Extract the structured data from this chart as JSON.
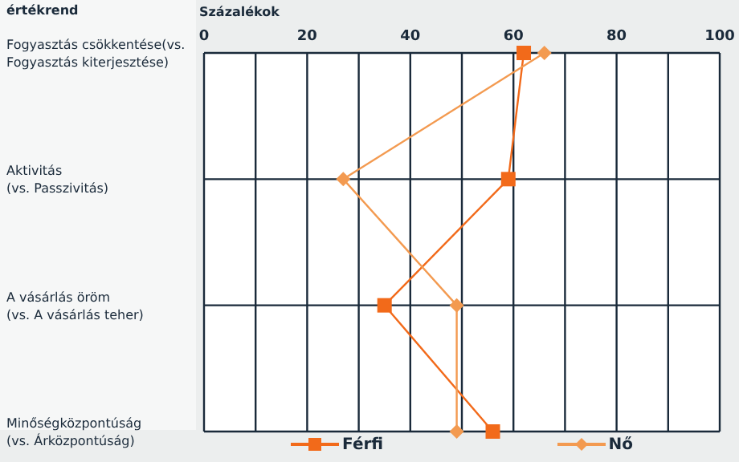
{
  "chart_data": {
    "type": "line",
    "xlabel": "Százalékok",
    "ylabel": "értékrend",
    "categories": [
      "Fogyasztás csökkentése(vs. Fogyasztás kiterjesztése)",
      "Aktivitás (vs. Passzivitás)",
      "A vásárlás öröm (vs. A vásárlás teher)",
      "Minőségközpontúság (vs. Árközpontúság)"
    ],
    "series": [
      {
        "name": "Férfi",
        "color": "#f26a1a",
        "marker": "square",
        "values": [
          62,
          59,
          35,
          56
        ]
      },
      {
        "name": "Nő",
        "color": "#f39a50",
        "marker": "diamond",
        "values": [
          66,
          27,
          49,
          49
        ]
      }
    ],
    "xlim": [
      0,
      100
    ],
    "xticks": [
      0,
      {
        "value": 10,
        "label": null
      },
      20,
      {
        "value": 30,
        "label": null
      },
      40,
      {
        "value": 50,
        "label": null
      },
      60,
      {
        "value": 70,
        "label": null
      },
      80,
      {
        "value": 90,
        "label": null
      },
      100
    ],
    "grid": true,
    "legend": "bottom",
    "orientation": "horizontal"
  }
}
